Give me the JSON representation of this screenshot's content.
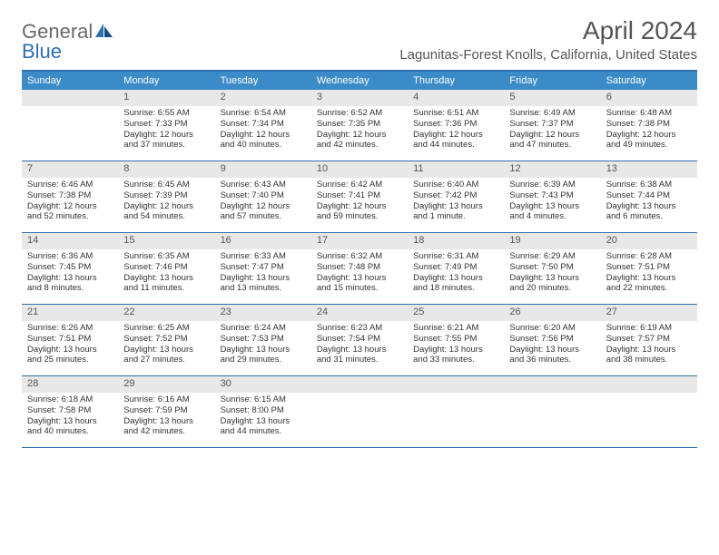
{
  "logo": {
    "part1": "General",
    "part2": "Blue"
  },
  "title": "April 2024",
  "location": "Lagunitas-Forest Knolls, California, United States",
  "colors": {
    "header_bar": "#3b8bc8",
    "border": "#2f6fb0",
    "daynum_bg": "#e8e8e8",
    "text": "#333333",
    "title_text": "#555555"
  },
  "days_of_week": [
    "Sunday",
    "Monday",
    "Tuesday",
    "Wednesday",
    "Thursday",
    "Friday",
    "Saturday"
  ],
  "weeks": [
    [
      null,
      {
        "n": "1",
        "sr": "Sunrise: 6:55 AM",
        "ss": "Sunset: 7:33 PM",
        "d1": "Daylight: 12 hours",
        "d2": "and 37 minutes."
      },
      {
        "n": "2",
        "sr": "Sunrise: 6:54 AM",
        "ss": "Sunset: 7:34 PM",
        "d1": "Daylight: 12 hours",
        "d2": "and 40 minutes."
      },
      {
        "n": "3",
        "sr": "Sunrise: 6:52 AM",
        "ss": "Sunset: 7:35 PM",
        "d1": "Daylight: 12 hours",
        "d2": "and 42 minutes."
      },
      {
        "n": "4",
        "sr": "Sunrise: 6:51 AM",
        "ss": "Sunset: 7:36 PM",
        "d1": "Daylight: 12 hours",
        "d2": "and 44 minutes."
      },
      {
        "n": "5",
        "sr": "Sunrise: 6:49 AM",
        "ss": "Sunset: 7:37 PM",
        "d1": "Daylight: 12 hours",
        "d2": "and 47 minutes."
      },
      {
        "n": "6",
        "sr": "Sunrise: 6:48 AM",
        "ss": "Sunset: 7:38 PM",
        "d1": "Daylight: 12 hours",
        "d2": "and 49 minutes."
      }
    ],
    [
      {
        "n": "7",
        "sr": "Sunrise: 6:46 AM",
        "ss": "Sunset: 7:38 PM",
        "d1": "Daylight: 12 hours",
        "d2": "and 52 minutes."
      },
      {
        "n": "8",
        "sr": "Sunrise: 6:45 AM",
        "ss": "Sunset: 7:39 PM",
        "d1": "Daylight: 12 hours",
        "d2": "and 54 minutes."
      },
      {
        "n": "9",
        "sr": "Sunrise: 6:43 AM",
        "ss": "Sunset: 7:40 PM",
        "d1": "Daylight: 12 hours",
        "d2": "and 57 minutes."
      },
      {
        "n": "10",
        "sr": "Sunrise: 6:42 AM",
        "ss": "Sunset: 7:41 PM",
        "d1": "Daylight: 12 hours",
        "d2": "and 59 minutes."
      },
      {
        "n": "11",
        "sr": "Sunrise: 6:40 AM",
        "ss": "Sunset: 7:42 PM",
        "d1": "Daylight: 13 hours",
        "d2": "and 1 minute."
      },
      {
        "n": "12",
        "sr": "Sunrise: 6:39 AM",
        "ss": "Sunset: 7:43 PM",
        "d1": "Daylight: 13 hours",
        "d2": "and 4 minutes."
      },
      {
        "n": "13",
        "sr": "Sunrise: 6:38 AM",
        "ss": "Sunset: 7:44 PM",
        "d1": "Daylight: 13 hours",
        "d2": "and 6 minutes."
      }
    ],
    [
      {
        "n": "14",
        "sr": "Sunrise: 6:36 AM",
        "ss": "Sunset: 7:45 PM",
        "d1": "Daylight: 13 hours",
        "d2": "and 8 minutes."
      },
      {
        "n": "15",
        "sr": "Sunrise: 6:35 AM",
        "ss": "Sunset: 7:46 PM",
        "d1": "Daylight: 13 hours",
        "d2": "and 11 minutes."
      },
      {
        "n": "16",
        "sr": "Sunrise: 6:33 AM",
        "ss": "Sunset: 7:47 PM",
        "d1": "Daylight: 13 hours",
        "d2": "and 13 minutes."
      },
      {
        "n": "17",
        "sr": "Sunrise: 6:32 AM",
        "ss": "Sunset: 7:48 PM",
        "d1": "Daylight: 13 hours",
        "d2": "and 15 minutes."
      },
      {
        "n": "18",
        "sr": "Sunrise: 6:31 AM",
        "ss": "Sunset: 7:49 PM",
        "d1": "Daylight: 13 hours",
        "d2": "and 18 minutes."
      },
      {
        "n": "19",
        "sr": "Sunrise: 6:29 AM",
        "ss": "Sunset: 7:50 PM",
        "d1": "Daylight: 13 hours",
        "d2": "and 20 minutes."
      },
      {
        "n": "20",
        "sr": "Sunrise: 6:28 AM",
        "ss": "Sunset: 7:51 PM",
        "d1": "Daylight: 13 hours",
        "d2": "and 22 minutes."
      }
    ],
    [
      {
        "n": "21",
        "sr": "Sunrise: 6:26 AM",
        "ss": "Sunset: 7:51 PM",
        "d1": "Daylight: 13 hours",
        "d2": "and 25 minutes."
      },
      {
        "n": "22",
        "sr": "Sunrise: 6:25 AM",
        "ss": "Sunset: 7:52 PM",
        "d1": "Daylight: 13 hours",
        "d2": "and 27 minutes."
      },
      {
        "n": "23",
        "sr": "Sunrise: 6:24 AM",
        "ss": "Sunset: 7:53 PM",
        "d1": "Daylight: 13 hours",
        "d2": "and 29 minutes."
      },
      {
        "n": "24",
        "sr": "Sunrise: 6:23 AM",
        "ss": "Sunset: 7:54 PM",
        "d1": "Daylight: 13 hours",
        "d2": "and 31 minutes."
      },
      {
        "n": "25",
        "sr": "Sunrise: 6:21 AM",
        "ss": "Sunset: 7:55 PM",
        "d1": "Daylight: 13 hours",
        "d2": "and 33 minutes."
      },
      {
        "n": "26",
        "sr": "Sunrise: 6:20 AM",
        "ss": "Sunset: 7:56 PM",
        "d1": "Daylight: 13 hours",
        "d2": "and 36 minutes."
      },
      {
        "n": "27",
        "sr": "Sunrise: 6:19 AM",
        "ss": "Sunset: 7:57 PM",
        "d1": "Daylight: 13 hours",
        "d2": "and 38 minutes."
      }
    ],
    [
      {
        "n": "28",
        "sr": "Sunrise: 6:18 AM",
        "ss": "Sunset: 7:58 PM",
        "d1": "Daylight: 13 hours",
        "d2": "and 40 minutes."
      },
      {
        "n": "29",
        "sr": "Sunrise: 6:16 AM",
        "ss": "Sunset: 7:59 PM",
        "d1": "Daylight: 13 hours",
        "d2": "and 42 minutes."
      },
      {
        "n": "30",
        "sr": "Sunrise: 6:15 AM",
        "ss": "Sunset: 8:00 PM",
        "d1": "Daylight: 13 hours",
        "d2": "and 44 minutes."
      },
      null,
      null,
      null,
      null
    ]
  ]
}
